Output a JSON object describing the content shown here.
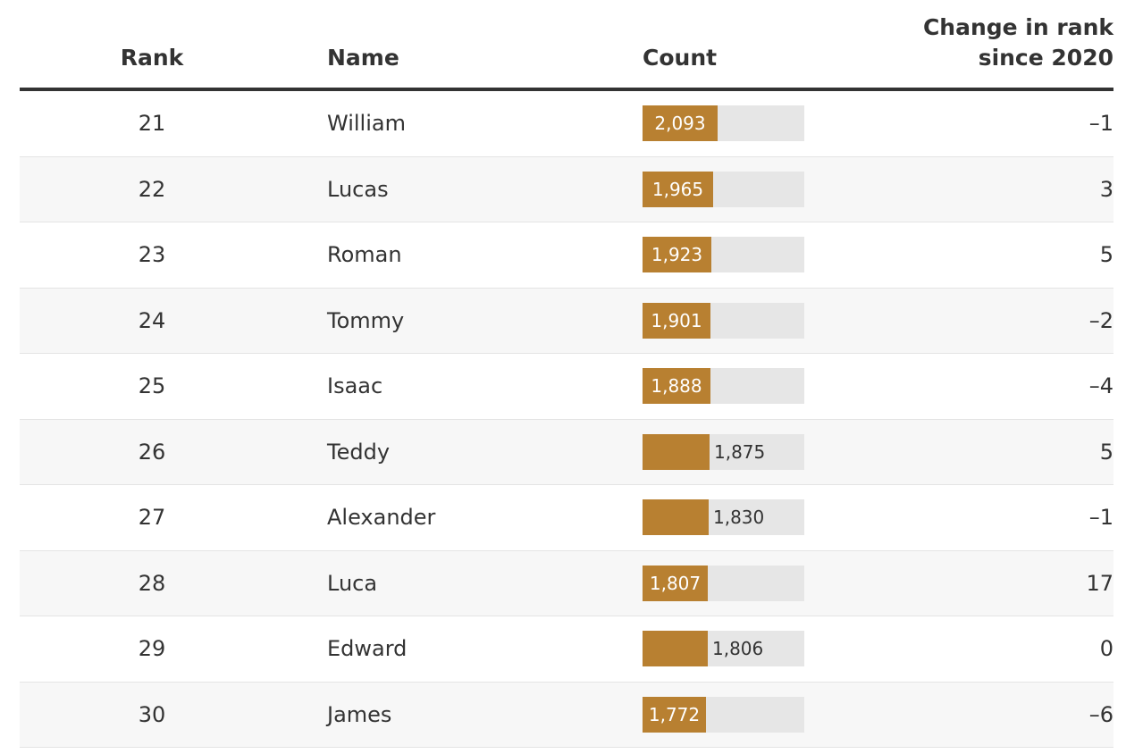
{
  "header": {
    "rank": "Rank",
    "name": "Name",
    "count": "Count",
    "change_line1": "Change in rank",
    "change_line2": "since 2020"
  },
  "colors": {
    "bar": "#b88031",
    "track": "#e6e6e6",
    "alt_row": "#f7f7f7",
    "text": "#333333"
  },
  "chart_data": {
    "type": "table",
    "columns": [
      "Rank",
      "Name",
      "Count",
      "Change in rank since 2020"
    ],
    "bar_max": 4500,
    "rows": [
      {
        "rank": "21",
        "name": "William",
        "count": 2093,
        "count_label": "2,093",
        "change": "–1",
        "label_inside": true
      },
      {
        "rank": "22",
        "name": "Lucas",
        "count": 1965,
        "count_label": "1,965",
        "change": "3",
        "label_inside": true
      },
      {
        "rank": "23",
        "name": "Roman",
        "count": 1923,
        "count_label": "1,923",
        "change": "5",
        "label_inside": true
      },
      {
        "rank": "24",
        "name": "Tommy",
        "count": 1901,
        "count_label": "1,901",
        "change": "–2",
        "label_inside": true
      },
      {
        "rank": "25",
        "name": "Isaac",
        "count": 1888,
        "count_label": "1,888",
        "change": "–4",
        "label_inside": true
      },
      {
        "rank": "26",
        "name": "Teddy",
        "count": 1875,
        "count_label": "1,875",
        "change": "5",
        "label_inside": false
      },
      {
        "rank": "27",
        "name": "Alexander",
        "count": 1830,
        "count_label": "1,830",
        "change": "–1",
        "label_inside": false
      },
      {
        "rank": "28",
        "name": "Luca",
        "count": 1807,
        "count_label": "1,807",
        "change": "17",
        "label_inside": true
      },
      {
        "rank": "29",
        "name": "Edward",
        "count": 1806,
        "count_label": "1,806",
        "change": "0",
        "label_inside": false
      },
      {
        "rank": "30",
        "name": "James",
        "count": 1772,
        "count_label": "1,772",
        "change": "–6",
        "label_inside": true
      }
    ]
  }
}
